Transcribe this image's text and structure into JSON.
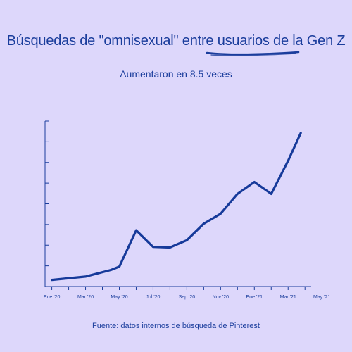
{
  "title": "Búsquedas de \"omnisexual\" entre usuarios de la Gen Z",
  "subtitle": "Aumentaron en 8.5 veces",
  "source": "Fuente: datos internos de búsqueda de Pinterest",
  "colors": {
    "background": "#DDD7FB",
    "accent": "#1A3D9C",
    "line": "#163A9A"
  },
  "chart_data": {
    "type": "line",
    "title": "Búsquedas de \"omnisexual\" entre usuarios de la Gen Z",
    "subtitle": "Aumentaron en 8.5 veces",
    "xlabel": "",
    "ylabel": "",
    "categories": [
      "Ene '20",
      "Mar '20",
      "May '20",
      "Jul '20",
      "Sep '20",
      "Nov '20",
      "Ene '21",
      "Mar '21",
      "May '21"
    ],
    "x": [
      0,
      2,
      3.5,
      4,
      5,
      6,
      7,
      8,
      9,
      10,
      11,
      12,
      13,
      14,
      14.75
    ],
    "series": [
      {
        "values": [
          1.0,
          1.5,
          2.5,
          3.0,
          8.5,
          6.0,
          5.9,
          7.0,
          9.5,
          11.0,
          14.0,
          15.8,
          14.0,
          19.0,
          23.2
        ]
      }
    ],
    "ylim": [
      0,
      25
    ],
    "xlim": [
      -0.4,
      15.2
    ],
    "grid": false,
    "legend": "none"
  }
}
